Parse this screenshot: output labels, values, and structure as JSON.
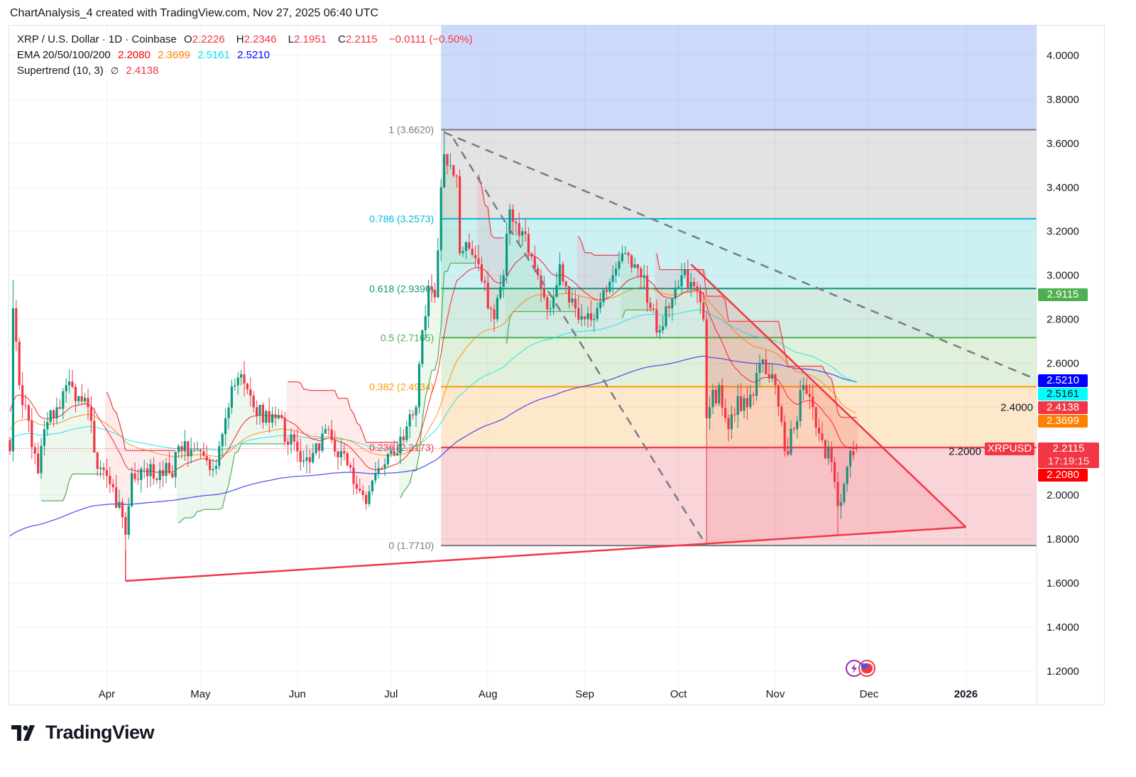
{
  "caption": "ChartAnalysis_4 created with TradingView.com, Nov 27, 2025 06:40 UTC",
  "legend": {
    "symbol": "XRP / U.S. Dollar · 1D · Coinbase",
    "o_label": "O",
    "o": "2.2226",
    "h_label": "H",
    "h": "2.2346",
    "l_label": "L",
    "l": "2.1951",
    "c_label": "C",
    "c": "2.2115",
    "change": "−0.0111 (−0.50%)",
    "ema_label": "EMA 20/50/100/200",
    "ema20": "2.2080",
    "ema50": "2.3699",
    "ema100": "2.5161",
    "ema200": "2.5210",
    "supertrend_label": "Supertrend (10, 3)",
    "supertrend_icon": "∅",
    "supertrend_value": "2.4138"
  },
  "colors": {
    "up": "#089981",
    "down": "#f23645",
    "ema20": "#ff0000",
    "ema50": "#ff7f00",
    "ema100": "#00e5ee",
    "ema200": "#3a3af0",
    "st_up": "#4caf50",
    "st_down": "#f23645"
  },
  "badges": [
    {
      "value": "2.9115",
      "price": 2.9115,
      "bg": "#4caf50",
      "fg": "#ffffff"
    },
    {
      "value": "2.5210",
      "price": 2.521,
      "bg": "#0000ff",
      "fg": "#ffffff"
    },
    {
      "value": "2.5161",
      "price": 2.5161,
      "bg": "#00ffff",
      "fg": "#131722"
    },
    {
      "value": "2.4138",
      "price": 2.4138,
      "bg": "#f23645",
      "fg": "#ffffff"
    },
    {
      "value": "2.3699",
      "price": 2.3699,
      "bg": "#ff7f00",
      "fg": "#ffffff"
    },
    {
      "value": "2.2115",
      "price": 2.2115,
      "bg": "#f23645",
      "fg": "#ffffff",
      "sub": "17:19:15"
    },
    {
      "value": "2.2080",
      "price": 2.208,
      "bg": "#ff0000",
      "fg": "#ffffff"
    }
  ],
  "symbol_tag": "XRPUSD",
  "logo_text": "TradingView",
  "chart_data": {
    "type": "candlestick",
    "title": "XRP / U.S. Dollar · 1D · Coinbase",
    "start_date": "2025-03-01",
    "end_date": "2025-11-27",
    "ylim": [
      1.1,
      4.15
    ],
    "y_ticks": [
      "4.0000",
      "3.8000",
      "3.6000",
      "3.4000",
      "3.2000",
      "3.0000",
      "2.8000",
      "2.6000",
      "2.4000",
      "2.2000",
      "2.0000",
      "1.8000",
      "1.6000",
      "1.4000",
      "1.2000"
    ],
    "x_ticks": [
      {
        "label": "Apr",
        "date": "2025-04-01"
      },
      {
        "label": "May",
        "date": "2025-05-01"
      },
      {
        "label": "Jun",
        "date": "2025-06-01"
      },
      {
        "label": "Jul",
        "date": "2025-07-01"
      },
      {
        "label": "Aug",
        "date": "2025-08-01"
      },
      {
        "label": "Sep",
        "date": "2025-09-01"
      },
      {
        "label": "Oct",
        "date": "2025-10-01"
      },
      {
        "label": "Nov",
        "date": "2025-11-01"
      },
      {
        "label": "Dec",
        "date": "2025-12-01"
      },
      {
        "label": "2026",
        "date": "2026-01-01",
        "bold": true
      }
    ],
    "approx_closes": [
      [
        "2025-03-01",
        2.2
      ],
      [
        "2025-03-02",
        2.85
      ],
      [
        "2025-03-04",
        2.5
      ],
      [
        "2025-03-10",
        2.1
      ],
      [
        "2025-03-12",
        2.3
      ],
      [
        "2025-03-16",
        2.4
      ],
      [
        "2025-03-19",
        2.5
      ],
      [
        "2025-03-23",
        2.45
      ],
      [
        "2025-03-26",
        2.4
      ],
      [
        "2025-03-29",
        2.12
      ],
      [
        "2025-04-02",
        2.05
      ],
      [
        "2025-04-06",
        1.9
      ],
      [
        "2025-04-07",
        1.82
      ],
      [
        "2025-04-09",
        2.1
      ],
      [
        "2025-04-12",
        2.12
      ],
      [
        "2025-04-21",
        2.1
      ],
      [
        "2025-04-25",
        2.2
      ],
      [
        "2025-05-01",
        2.2
      ],
      [
        "2025-05-05",
        2.12
      ],
      [
        "2025-05-09",
        2.35
      ],
      [
        "2025-05-12",
        2.5
      ],
      [
        "2025-05-14",
        2.55
      ],
      [
        "2025-05-18",
        2.4
      ],
      [
        "2025-05-25",
        2.35
      ],
      [
        "2025-06-01",
        2.2
      ],
      [
        "2025-06-05",
        2.15
      ],
      [
        "2025-06-10",
        2.3
      ],
      [
        "2025-06-15",
        2.2
      ],
      [
        "2025-06-21",
        2.02
      ],
      [
        "2025-06-23",
        1.96
      ],
      [
        "2025-06-26",
        2.1
      ],
      [
        "2025-07-01",
        2.2
      ],
      [
        "2025-07-05",
        2.25
      ],
      [
        "2025-07-09",
        2.4
      ],
      [
        "2025-07-11",
        2.75
      ],
      [
        "2025-07-13",
        2.95
      ],
      [
        "2025-07-15",
        2.9
      ],
      [
        "2025-07-17",
        3.4
      ],
      [
        "2025-07-18",
        3.55
      ],
      [
        "2025-07-20",
        3.5
      ],
      [
        "2025-07-22",
        3.45
      ],
      [
        "2025-07-23",
        3.1
      ],
      [
        "2025-07-25",
        3.15
      ],
      [
        "2025-07-29",
        3.05
      ],
      [
        "2025-08-01",
        2.85
      ],
      [
        "2025-08-03",
        2.8
      ],
      [
        "2025-08-06",
        3.0
      ],
      [
        "2025-08-08",
        3.3
      ],
      [
        "2025-08-12",
        3.2
      ],
      [
        "2025-08-14",
        3.1
      ],
      [
        "2025-08-17",
        3.0
      ],
      [
        "2025-08-21",
        2.85
      ],
      [
        "2025-08-24",
        3.05
      ],
      [
        "2025-08-26",
        2.95
      ],
      [
        "2025-08-29",
        2.85
      ],
      [
        "2025-09-01",
        2.8
      ],
      [
        "2025-09-05",
        2.85
      ],
      [
        "2025-09-10",
        3.0
      ],
      [
        "2025-09-13",
        3.1
      ],
      [
        "2025-09-17",
        3.05
      ],
      [
        "2025-09-20",
        3.0
      ],
      [
        "2025-09-22",
        2.85
      ],
      [
        "2025-09-25",
        2.75
      ],
      [
        "2025-09-28",
        2.85
      ],
      [
        "2025-10-02",
        3.0
      ],
      [
        "2025-10-06",
        2.95
      ],
      [
        "2025-10-09",
        2.8
      ],
      [
        "2025-10-10",
        2.35
      ],
      [
        "2025-10-11",
        2.4
      ],
      [
        "2025-10-14",
        2.5
      ],
      [
        "2025-10-17",
        2.3
      ],
      [
        "2025-10-20",
        2.45
      ],
      [
        "2025-10-23",
        2.4
      ],
      [
        "2025-10-27",
        2.6
      ],
      [
        "2025-10-29",
        2.55
      ],
      [
        "2025-11-01",
        2.5
      ],
      [
        "2025-11-04",
        2.2
      ],
      [
        "2025-11-07",
        2.3
      ],
      [
        "2025-11-10",
        2.5
      ],
      [
        "2025-11-13",
        2.4
      ],
      [
        "2025-11-16",
        2.25
      ],
      [
        "2025-11-19",
        2.15
      ],
      [
        "2025-11-21",
        1.95
      ],
      [
        "2025-11-23",
        2.05
      ],
      [
        "2025-11-25",
        2.2
      ],
      [
        "2025-11-27",
        2.2115
      ]
    ],
    "wick_extremes": [
      {
        "date": "2025-03-02",
        "high": 2.98
      },
      {
        "date": "2025-04-07",
        "low": 1.72
      },
      {
        "date": "2025-07-18",
        "high": 3.662
      },
      {
        "date": "2025-10-10",
        "low": 1.771
      },
      {
        "date": "2025-11-21",
        "low": 1.82
      }
    ],
    "last_candle": {
      "open": 2.2226,
      "high": 2.2346,
      "low": 2.1951,
      "close": 2.2115
    },
    "ema_seeds": {
      "ema20": 2.4,
      "ema50": 2.3,
      "ema100": 2.25,
      "ema200": 1.81
    },
    "fib": {
      "start_date": "2025-07-17",
      "levels": [
        {
          "ratio": 1,
          "label": "1 (3.6620)",
          "price": 3.662,
          "color": "#787b86",
          "fill": "#e3e3e3"
        },
        {
          "ratio": 0.786,
          "label": "0.786 (3.2573)",
          "price": 3.2573,
          "color": "#00bcd4",
          "fill": "#cdf0f3"
        },
        {
          "ratio": 0.618,
          "label": "0.618 (2.9396)",
          "price": 2.9396,
          "color": "#089981",
          "fill": "#d4ebe3"
        },
        {
          "ratio": 0.5,
          "label": "0.5 (2.7165)",
          "price": 2.7165,
          "color": "#4caf50",
          "fill": "#e0f0da"
        },
        {
          "ratio": 0.382,
          "label": "0.382 (2.4934)",
          "price": 2.4934,
          "color": "#ff9800",
          "fill": "#fde8cc"
        },
        {
          "ratio": 0.236,
          "label": "0.236 (2.2173)",
          "price": 2.2173,
          "color": "#f23645",
          "fill": "#f9d4d8"
        },
        {
          "ratio": 0,
          "label": "0 (1.7710)",
          "price": 1.771,
          "color": "#787b86",
          "fill": null
        }
      ],
      "above_fill": "#cdd9fb"
    },
    "trendlines": [
      {
        "kind": "dashed",
        "from": [
          "2025-07-18",
          3.65
        ],
        "to": [
          "2026-01-23",
          2.53
        ]
      },
      {
        "kind": "dashed",
        "from": [
          "2025-07-21",
          3.62
        ],
        "to": [
          "2025-10-10",
          1.77
        ]
      },
      {
        "kind": "support",
        "from": [
          "2025-04-07",
          1.61
        ],
        "to": [
          "2026-01-01",
          1.855
        ]
      },
      {
        "kind": "resistance",
        "from": [
          "2025-10-05",
          3.05
        ],
        "to": [
          "2026-01-01",
          1.855
        ]
      }
    ],
    "current_price": 2.2115
  }
}
